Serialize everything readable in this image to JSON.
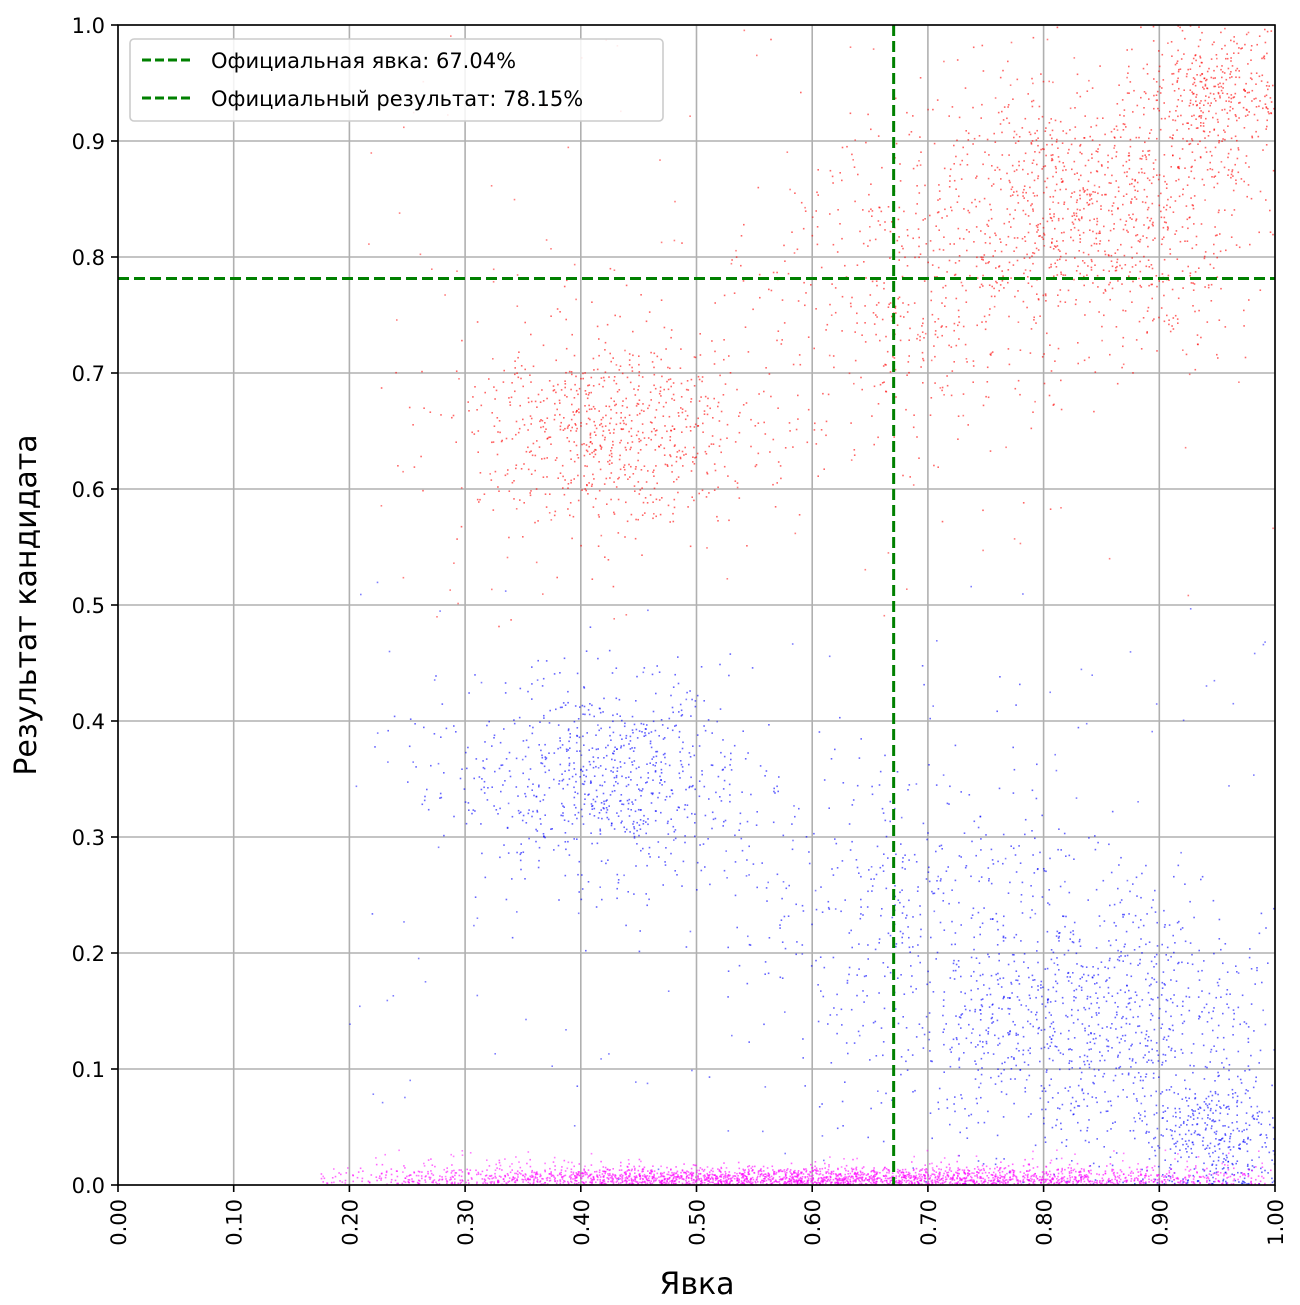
{
  "chart_data": {
    "type": "scatter",
    "title": "",
    "xlabel": "Явка",
    "ylabel": "Результат кандидата",
    "xlim": [
      0.0,
      1.0
    ],
    "ylim": [
      0.0,
      1.0
    ],
    "grid": true,
    "legend_position": "top-left",
    "x_ticks": [
      0.0,
      0.1,
      0.2,
      0.3,
      0.4,
      0.5,
      0.6,
      0.7,
      0.8,
      0.9,
      1.0
    ],
    "x_tick_labels": [
      "0.00",
      "0.10",
      "0.20",
      "0.30",
      "0.40",
      "0.50",
      "0.60",
      "0.70",
      "0.80",
      "0.90",
      "1.00"
    ],
    "y_ticks": [
      0.0,
      0.1,
      0.2,
      0.3,
      0.4,
      0.5,
      0.6,
      0.7,
      0.8,
      0.9,
      1.0
    ],
    "y_tick_labels": [
      "0.0",
      "0.1",
      "0.2",
      "0.3",
      "0.4",
      "0.5",
      "0.6",
      "0.7",
      "0.8",
      "0.9",
      "1.0"
    ],
    "reference_lines": [
      {
        "orientation": "vertical",
        "value": 0.6704,
        "label": "Официальная явка: 67.04%",
        "color": "#008000",
        "style": "dashed"
      },
      {
        "orientation": "horizontal",
        "value": 0.7815,
        "label": "Официальный результат: 78.15%",
        "color": "#008000",
        "style": "dashed"
      }
    ],
    "series": [
      {
        "color": "#ff0000",
        "clusters": [
          {
            "x": 0.43,
            "y": 0.65,
            "sx": 0.065,
            "sy": 0.045,
            "share": 0.3
          },
          {
            "x": 0.84,
            "y": 0.84,
            "sx": 0.08,
            "sy": 0.06,
            "share": 0.4
          },
          {
            "x": 0.95,
            "y": 0.94,
            "sx": 0.035,
            "sy": 0.035,
            "share": 0.15
          },
          {
            "x": 0.68,
            "y": 0.76,
            "sx": 0.08,
            "sy": 0.07,
            "share": 0.15
          }
        ],
        "x_range": [
          0.2,
          1.0
        ],
        "y_range": [
          0.48,
          1.0
        ]
      },
      {
        "color": "#0000ff",
        "clusters": [
          {
            "x": 0.42,
            "y": 0.35,
            "sx": 0.065,
            "sy": 0.045,
            "share": 0.3
          },
          {
            "x": 0.84,
            "y": 0.14,
            "sx": 0.08,
            "sy": 0.06,
            "share": 0.4
          },
          {
            "x": 0.95,
            "y": 0.04,
            "sx": 0.035,
            "sy": 0.03,
            "share": 0.15
          },
          {
            "x": 0.68,
            "y": 0.24,
            "sx": 0.08,
            "sy": 0.07,
            "share": 0.15
          }
        ],
        "x_range": [
          0.2,
          1.0
        ],
        "y_range": [
          0.0,
          0.52
        ]
      },
      {
        "color": "#ff00ff",
        "clusters": [
          {
            "x": 0.6,
            "y": 0.006,
            "sx": 0.2,
            "sy": 0.005,
            "share": 1.0
          }
        ],
        "x_range": [
          0.17,
          1.0
        ],
        "y_range": [
          0.0,
          0.03
        ]
      }
    ]
  }
}
